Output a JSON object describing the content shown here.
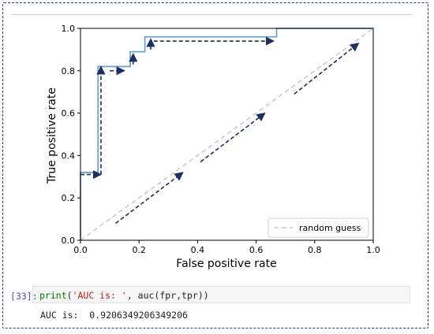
{
  "notebook": {
    "cell_prompt": "[33]:",
    "code_func": "print",
    "code_string": "'AUC is: '",
    "code_rest": ", auc(fpr,tpr))",
    "output": "AUC is:  0.9206349206349206"
  },
  "colors": {
    "roc_line": "#6fa3cc",
    "guess_line": "#c8c8c8",
    "annotation_arrow": "#1c2f5e",
    "frame": "#1e3a7a"
  },
  "chart_data": {
    "type": "line",
    "xlabel": "False positive rate",
    "ylabel": "True positive rate",
    "xlim": [
      0.0,
      1.0
    ],
    "ylim": [
      0.0,
      1.0
    ],
    "x_ticks": [
      "0.0",
      "0.2",
      "0.4",
      "0.6",
      "0.8",
      "1.0"
    ],
    "y_ticks": [
      "0.0",
      "0.2",
      "0.4",
      "0.6",
      "0.8",
      "1.0"
    ],
    "grid": false,
    "legend": {
      "position": "lower-right",
      "entries": [
        "random guess"
      ]
    },
    "series": [
      {
        "style": "solid",
        "x": [
          0.0,
          0.0,
          0.06,
          0.06,
          0.17,
          0.17,
          0.22,
          0.22,
          0.67,
          0.67,
          1.0
        ],
        "y": [
          0.0,
          0.32,
          0.32,
          0.82,
          0.82,
          0.89,
          0.89,
          0.96,
          0.96,
          1.0,
          1.0
        ]
      },
      {
        "name": "random guess",
        "style": "dashed",
        "x": [
          0.0,
          1.0
        ],
        "y": [
          0.0,
          1.0
        ]
      }
    ],
    "annotations": [
      {
        "kind": "arrow",
        "from": [
          0.0,
          0.31
        ],
        "to": [
          0.07,
          0.31
        ]
      },
      {
        "kind": "arrow",
        "from": [
          0.07,
          0.31
        ],
        "to": [
          0.07,
          0.82
        ]
      },
      {
        "kind": "arrow",
        "from": [
          0.1,
          0.8
        ],
        "to": [
          0.15,
          0.8
        ]
      },
      {
        "kind": "arrow",
        "from": [
          0.18,
          0.83
        ],
        "to": [
          0.18,
          0.88
        ]
      },
      {
        "kind": "arrow",
        "from": [
          0.24,
          0.9
        ],
        "to": [
          0.24,
          0.95
        ]
      },
      {
        "kind": "arrow",
        "from": [
          0.25,
          0.94
        ],
        "to": [
          0.66,
          0.94
        ]
      },
      {
        "kind": "arrow",
        "from": [
          0.12,
          0.08
        ],
        "to": [
          0.35,
          0.32
        ]
      },
      {
        "kind": "arrow",
        "from": [
          0.41,
          0.37
        ],
        "to": [
          0.63,
          0.6
        ]
      },
      {
        "kind": "arrow",
        "from": [
          0.73,
          0.69
        ],
        "to": [
          0.95,
          0.93
        ]
      }
    ]
  }
}
